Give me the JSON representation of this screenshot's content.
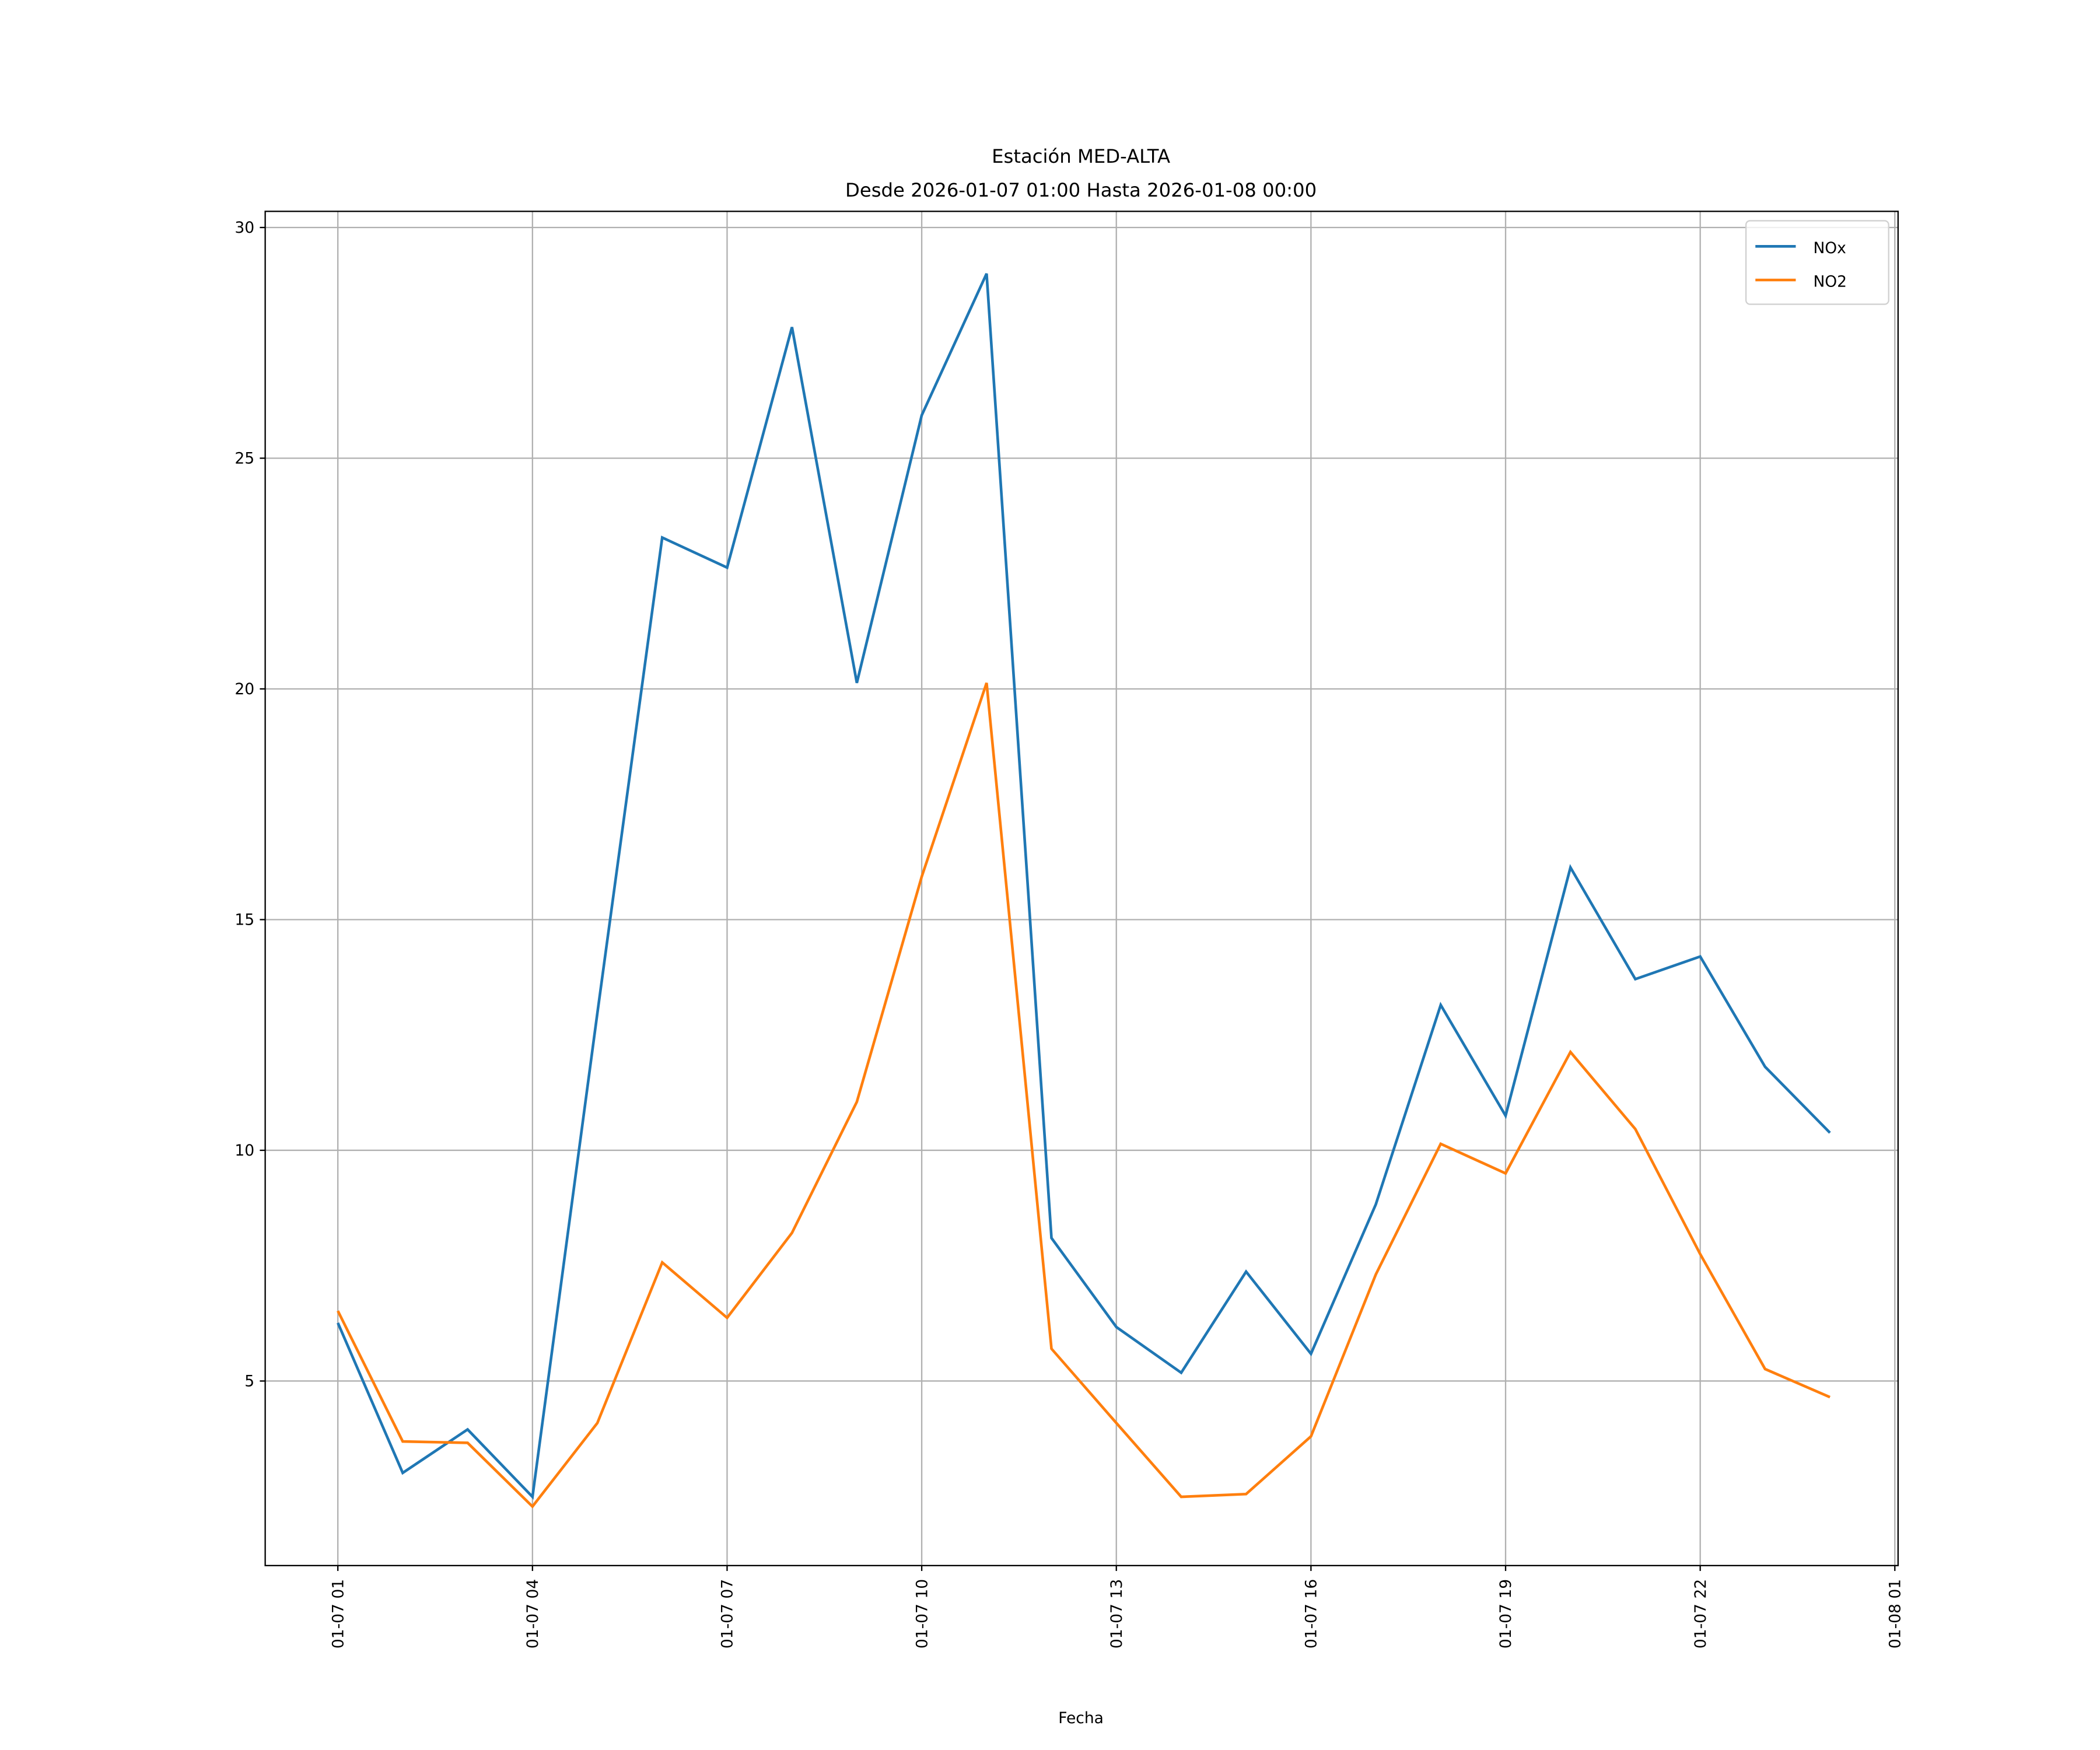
{
  "chart_data": {
    "type": "line",
    "title": "Estación MED-ALTA",
    "subtitle": "Desde 2026-01-07 01:00 Hasta 2026-01-08 00:00",
    "xlabel": "Fecha",
    "ylabel": "",
    "x": [
      "01-07 01",
      "01-07 02",
      "01-07 03",
      "01-07 04",
      "01-07 05",
      "01-07 06",
      "01-07 07",
      "01-07 08",
      "01-07 09",
      "01-07 10",
      "01-07 11",
      "01-07 12",
      "01-07 13",
      "01-07 14",
      "01-07 15",
      "01-07 16",
      "01-07 17",
      "01-07 18",
      "01-07 19",
      "01-07 20",
      "01-07 21",
      "01-07 22",
      "01-07 23",
      "01-08 00"
    ],
    "x_ticks": [
      "01-07 01",
      "01-07 04",
      "01-07 07",
      "01-07 10",
      "01-07 13",
      "01-07 16",
      "01-07 19",
      "01-07 22",
      "01-08 01"
    ],
    "x_tick_hours": [
      0,
      3,
      6,
      9,
      12,
      15,
      18,
      21,
      24
    ],
    "y_ticks": [
      5,
      10,
      15,
      20,
      25,
      30
    ],
    "ylim": [
      1.0,
      30.35
    ],
    "xlim_hours": [
      -1.12,
      24.05
    ],
    "grid": true,
    "legend_position": "top-right",
    "series": [
      {
        "name": "NOx",
        "color": "#1f77b4",
        "values": [
          6.26,
          3.01,
          3.95,
          2.49,
          12.97,
          23.28,
          22.63,
          27.84,
          20.13,
          25.93,
          29.0,
          8.1,
          6.17,
          5.18,
          7.37,
          5.59,
          8.83,
          13.15,
          10.75,
          16.13,
          13.71,
          14.2,
          11.81,
          10.38
        ]
      },
      {
        "name": "NO2",
        "color": "#ff7f0e",
        "values": [
          6.52,
          3.69,
          3.66,
          2.28,
          4.09,
          7.57,
          6.37,
          8.21,
          11.05,
          15.93,
          20.13,
          5.7,
          4.09,
          2.49,
          2.55,
          3.8,
          7.31,
          10.14,
          9.5,
          12.13,
          10.46,
          7.75,
          5.26,
          4.65
        ]
      }
    ]
  }
}
